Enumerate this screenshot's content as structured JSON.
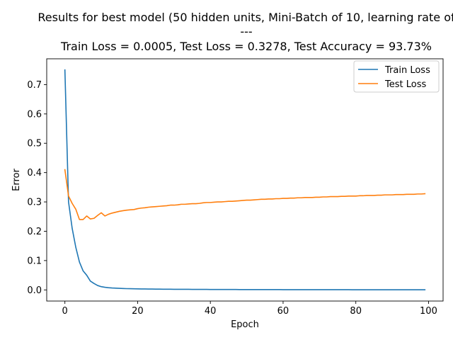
{
  "chart_data": {
    "type": "line",
    "title_lines": [
      "Results for best model (50 hidden units, Mini-Batch of 10, learning rate of",
      "---",
      "Train Loss = 0.0005, Test Loss = 0.3278, Test Accuracy = 93.73%"
    ],
    "xlabel": "Epoch",
    "ylabel": "Error",
    "xlim": [
      -5,
      104
    ],
    "ylim": [
      -0.038,
      0.788
    ],
    "xticks": [
      0,
      20,
      40,
      60,
      80,
      100
    ],
    "yticks": [
      0.0,
      0.1,
      0.2,
      0.3,
      0.4,
      0.5,
      0.6,
      0.7
    ],
    "legend_position": "top-right",
    "series": [
      {
        "name": "Train Loss",
        "color": "#1f77b4",
        "x": [
          0,
          1,
          2,
          3,
          4,
          5,
          6,
          7,
          8,
          9,
          10,
          11,
          12,
          13,
          14,
          15,
          16,
          17,
          18,
          19,
          20,
          21,
          22,
          23,
          24,
          25,
          26,
          27,
          28,
          29,
          30,
          31,
          32,
          33,
          34,
          35,
          36,
          37,
          38,
          39,
          40,
          41,
          42,
          43,
          44,
          45,
          46,
          47,
          48,
          49,
          50,
          51,
          52,
          53,
          54,
          55,
          56,
          57,
          58,
          59,
          60,
          61,
          62,
          63,
          64,
          65,
          66,
          67,
          68,
          69,
          70,
          71,
          72,
          73,
          74,
          75,
          76,
          77,
          78,
          79,
          80,
          81,
          82,
          83,
          84,
          85,
          86,
          87,
          88,
          89,
          90,
          91,
          92,
          93,
          94,
          95,
          96,
          97,
          98,
          99
        ],
        "y": [
          0.75,
          0.3,
          0.21,
          0.145,
          0.095,
          0.065,
          0.05,
          0.03,
          0.022,
          0.015,
          0.011,
          0.009,
          0.0075,
          0.0065,
          0.0058,
          0.0052,
          0.0047,
          0.0043,
          0.004,
          0.0037,
          0.0035,
          0.0033,
          0.0031,
          0.0029,
          0.0028,
          0.0026,
          0.0025,
          0.0024,
          0.0023,
          0.0022,
          0.0021,
          0.0021,
          0.002,
          0.0019,
          0.0019,
          0.0018,
          0.0017,
          0.0017,
          0.0016,
          0.0016,
          0.0015,
          0.0015,
          0.0014,
          0.0014,
          0.0014,
          0.0013,
          0.0013,
          0.0013,
          0.0012,
          0.0012,
          0.0012,
          0.0011,
          0.0011,
          0.0011,
          0.0011,
          0.001,
          0.001,
          0.001,
          0.001,
          0.001,
          0.0009,
          0.0009,
          0.0009,
          0.0009,
          0.0009,
          0.0008,
          0.0008,
          0.0008,
          0.0008,
          0.0008,
          0.0008,
          0.0007,
          0.0007,
          0.0007,
          0.0007,
          0.0007,
          0.0007,
          0.0007,
          0.0007,
          0.0006,
          0.0006,
          0.0006,
          0.0006,
          0.0006,
          0.0006,
          0.0006,
          0.0006,
          0.0006,
          0.0006,
          0.0006,
          0.0005,
          0.0005,
          0.0005,
          0.0005,
          0.0005,
          0.0005,
          0.0005,
          0.0005,
          0.0005,
          0.0005
        ]
      },
      {
        "name": "Test Loss",
        "color": "#ff7f0e",
        "x": [
          0,
          1,
          2,
          3,
          4,
          5,
          6,
          7,
          8,
          9,
          10,
          11,
          12,
          13,
          14,
          15,
          16,
          17,
          18,
          19,
          20,
          21,
          22,
          23,
          24,
          25,
          26,
          27,
          28,
          29,
          30,
          31,
          32,
          33,
          34,
          35,
          36,
          37,
          38,
          39,
          40,
          41,
          42,
          43,
          44,
          45,
          46,
          47,
          48,
          49,
          50,
          51,
          52,
          53,
          54,
          55,
          56,
          57,
          58,
          59,
          60,
          61,
          62,
          63,
          64,
          65,
          66,
          67,
          68,
          69,
          70,
          71,
          72,
          73,
          74,
          75,
          76,
          77,
          78,
          79,
          80,
          81,
          82,
          83,
          84,
          85,
          86,
          87,
          88,
          89,
          90,
          91,
          92,
          93,
          94,
          95,
          96,
          97,
          98,
          99
        ],
        "y": [
          0.41,
          0.32,
          0.295,
          0.275,
          0.24,
          0.24,
          0.252,
          0.242,
          0.244,
          0.254,
          0.263,
          0.252,
          0.258,
          0.262,
          0.265,
          0.268,
          0.27,
          0.272,
          0.273,
          0.274,
          0.277,
          0.279,
          0.28,
          0.282,
          0.283,
          0.284,
          0.285,
          0.286,
          0.287,
          0.289,
          0.289,
          0.29,
          0.292,
          0.292,
          0.293,
          0.294,
          0.294,
          0.295,
          0.297,
          0.298,
          0.298,
          0.299,
          0.3,
          0.3,
          0.301,
          0.302,
          0.302,
          0.303,
          0.304,
          0.305,
          0.306,
          0.306,
          0.307,
          0.308,
          0.309,
          0.309,
          0.31,
          0.31,
          0.311,
          0.311,
          0.312,
          0.312,
          0.313,
          0.313,
          0.314,
          0.314,
          0.315,
          0.315,
          0.315,
          0.316,
          0.316,
          0.317,
          0.317,
          0.318,
          0.318,
          0.318,
          0.319,
          0.319,
          0.32,
          0.32,
          0.32,
          0.321,
          0.321,
          0.322,
          0.322,
          0.322,
          0.323,
          0.323,
          0.324,
          0.324,
          0.324,
          0.325,
          0.325,
          0.325,
          0.326,
          0.326,
          0.326,
          0.327,
          0.327,
          0.328
        ]
      }
    ]
  }
}
